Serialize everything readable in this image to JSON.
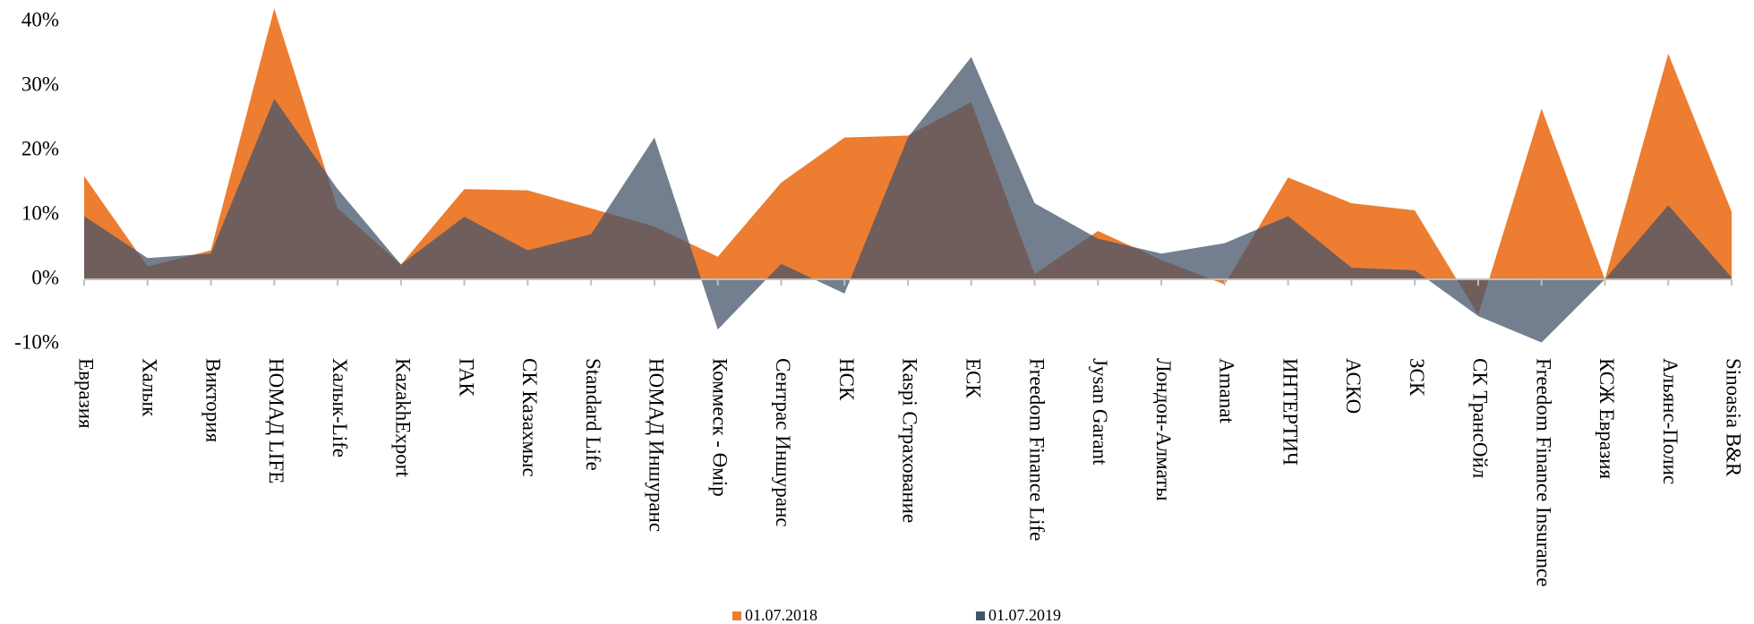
{
  "chart_data": {
    "type": "area",
    "categories": [
      "Евразия",
      "Халык",
      "Виктория",
      "НОМАД LIFE",
      "Халык-Life",
      "KazakhExport",
      "ГАК",
      "СК Казахмыс",
      "Standard Life",
      "НОМАД Иншуранс",
      "Коммеск - Өмір",
      "Сентрас Иншуранс",
      "НСК",
      "Kaspi Страхование",
      "ЕСК",
      "Freedom Finance Life",
      "Jysan Garant",
      "Лондон-Алматы",
      "Amanat",
      "ИНТЕРТИЧ",
      "АСКО",
      "ЗСК",
      "СК ТрансОйл",
      "Freedom Finance Insurance",
      "КСЖ Евразия",
      "Альянс-Полис",
      "Sinoasia B&R"
    ],
    "series": [
      {
        "name": "01.07.2018",
        "color": "#ed7d31",
        "values": [
          16,
          2,
          4.5,
          42,
          11,
          2.3,
          14,
          13.8,
          11,
          8.2,
          3.5,
          15,
          22,
          22.3,
          27.5,
          0.8,
          7.5,
          3,
          -0.8,
          15.8,
          11.8,
          10.7,
          -5.5,
          26.5,
          0,
          35,
          10.5
        ]
      },
      {
        "name": "01.07.2019",
        "color": "#44546a",
        "values": [
          9.8,
          3.3,
          4,
          28,
          14,
          2.3,
          9.7,
          4.5,
          7,
          22,
          -7.8,
          2.4,
          -2.2,
          22,
          34.5,
          11.8,
          6.3,
          4,
          5.6,
          9.8,
          1.8,
          1.4,
          -5.7,
          -9.8,
          0,
          11.5,
          0.3
        ]
      }
    ],
    "ylim": [
      -10,
      40
    ],
    "yticks": [
      {
        "value": -10,
        "label": "-10%"
      },
      {
        "value": 0,
        "label": "0%"
      },
      {
        "value": 10,
        "label": "10%"
      },
      {
        "value": 20,
        "label": "20%"
      },
      {
        "value": 30,
        "label": "30%"
      },
      {
        "value": 40,
        "label": "40%"
      }
    ],
    "grid": false,
    "legend": "bottom"
  }
}
